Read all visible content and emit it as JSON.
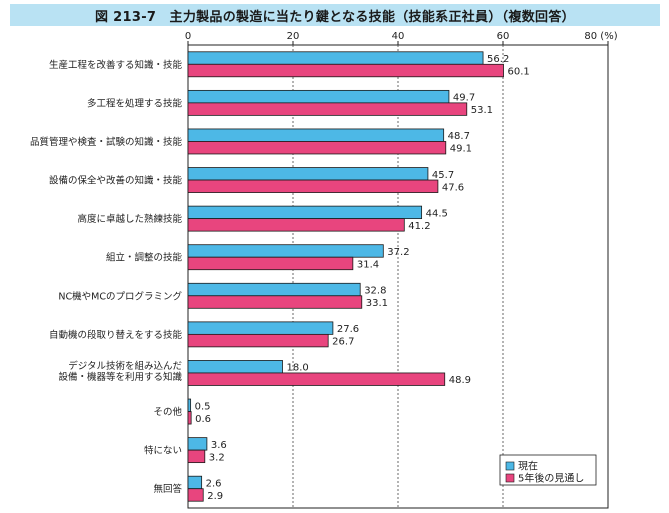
{
  "title": "図 213-7　主力製品の製造に当たり鍵となる技能（技能系正社員）（複数回答）",
  "colors": {
    "series1": "#4db8e6",
    "series2": "#e8457e",
    "title_bg": "#b9e2f3"
  },
  "chart_data": {
    "type": "bar",
    "orientation": "horizontal",
    "title": "図 213-7　主力製品の製造に当たり鍵となる技能（技能系正社員）（複数回答）",
    "xlim": [
      0,
      80
    ],
    "ticks": [
      {
        "label": "0",
        "value": 0
      },
      {
        "label": "20",
        "value": 20
      },
      {
        "label": "40",
        "value": 40
      },
      {
        "label": "60",
        "value": 60
      },
      {
        "label": "80 (%)",
        "value": 80
      }
    ],
    "grid": "vertical-dashed",
    "legend_position": "bottom-right",
    "categories": [
      [
        "生産工程を改善する知識・技能"
      ],
      [
        "多工程を処理する技能"
      ],
      [
        "品質管理や検査・試験の知識・技能"
      ],
      [
        "設備の保全や改善の知識・技能"
      ],
      [
        "高度に卓越した熟練技能"
      ],
      [
        "組立・調整の技能"
      ],
      [
        "NC機やMCのプログラミング"
      ],
      [
        "自動機の段取り替えをする技能"
      ],
      [
        "デジタル技術を組み込んだ",
        "設備・機器等を利用する知識"
      ],
      [
        "その他"
      ],
      [
        "特にない"
      ],
      [
        "無回答"
      ]
    ],
    "series": [
      {
        "name": "現在",
        "values": [
          56.2,
          49.7,
          48.7,
          45.7,
          44.5,
          37.2,
          32.8,
          27.6,
          18.0,
          0.5,
          3.6,
          2.6
        ],
        "labels": [
          "56.2",
          "49.7",
          "48.7",
          "45.7",
          "44.5",
          "37.2",
          "32.8",
          "27.6",
          "18.0",
          "0.5",
          "3.6",
          "2.6"
        ]
      },
      {
        "name": "5年後の見通し",
        "values": [
          60.1,
          53.1,
          49.1,
          47.6,
          41.2,
          31.4,
          33.1,
          26.7,
          48.9,
          0.6,
          3.2,
          2.9
        ],
        "labels": [
          "60.1",
          "53.1",
          "49.1",
          "47.6",
          "41.2",
          "31.4",
          "33.1",
          "26.7",
          "48.9",
          "0.6",
          "3.2",
          "2.9"
        ]
      }
    ]
  }
}
